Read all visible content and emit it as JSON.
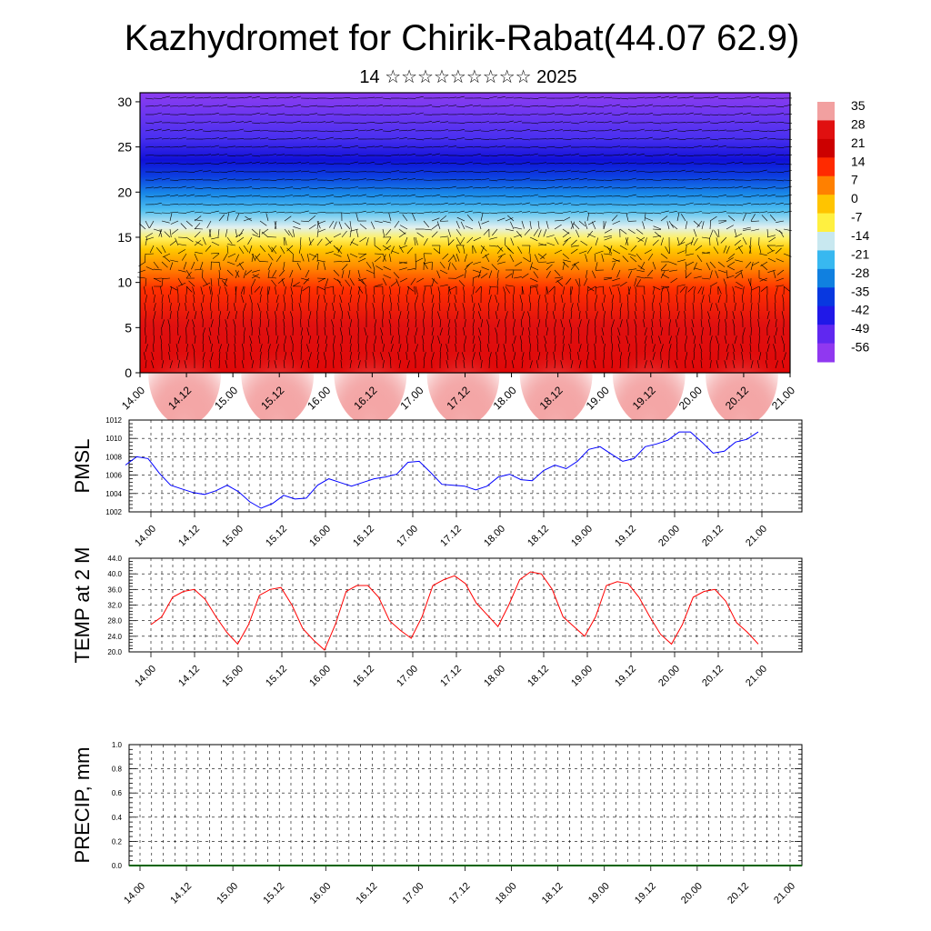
{
  "title": "Kazhydromet for Chirik-Rabat(44.07 62.9)",
  "subtitle": "14 ☆☆☆☆☆☆☆☆☆ 2025",
  "time_labels": [
    "14.00",
    "14.12",
    "15.00",
    "15.12",
    "16.00",
    "16.12",
    "17.00",
    "17.12",
    "18.00",
    "18.12",
    "19.00",
    "19.12",
    "20.00",
    "20.12",
    "21.00"
  ],
  "chart_data": [
    {
      "type": "heatmap",
      "title": "",
      "xlabel": "",
      "ylabel": "",
      "x": [
        "14.00",
        "14.12",
        "15.00",
        "15.12",
        "16.00",
        "16.12",
        "17.00",
        "17.12",
        "18.00",
        "18.12",
        "19.00",
        "19.12",
        "20.00",
        "20.12",
        "21.00"
      ],
      "yticks": [
        0,
        5,
        10,
        15,
        20,
        25,
        30
      ],
      "ylim": [
        0,
        31
      ],
      "colorbar": {
        "labels": [
          "35",
          "28",
          "21",
          "14",
          "7",
          "0",
          "-7",
          "-14",
          "-21",
          "-28",
          "-35",
          "-42",
          "-49",
          "-56"
        ],
        "values": [
          35,
          28,
          21,
          14,
          7,
          0,
          -7,
          -14,
          -21,
          -28,
          -35,
          -42,
          -49,
          -56
        ],
        "colors": [
          "#f2a0a0",
          "#e01010",
          "#cc0000",
          "#ff2a00",
          "#ff8000",
          "#ffc400",
          "#fff040",
          "#c8e8f0",
          "#38b8f0",
          "#1080e0",
          "#0838e0",
          "#2018e8",
          "#6028f0",
          "#9038f0"
        ]
      },
      "overlay": "wind barbs"
    },
    {
      "type": "line",
      "ylabel": "PMSL",
      "ylim": [
        1002,
        1012
      ],
      "yticks": [
        "1002",
        "1004",
        "1006",
        "1008",
        "1010",
        "1012"
      ],
      "color": "#0000ff",
      "series": [
        {
          "values": [
            1007.1,
            1008.0,
            1007.8,
            1006.2,
            1004.9,
            1004.5,
            1004.1,
            1003.9,
            1004.3,
            1004.9,
            1004.2,
            1003.1,
            1002.4,
            1002.9,
            1003.8,
            1003.4,
            1003.5,
            1004.9,
            1005.6,
            1005.2,
            1004.8,
            1005.2,
            1005.6,
            1005.8,
            1006.1,
            1007.4,
            1007.5,
            1006.3,
            1005.0,
            1004.9,
            1004.8,
            1004.4,
            1004.8,
            1005.8,
            1006.1,
            1005.5,
            1005.4,
            1006.5,
            1007.1,
            1006.7,
            1007.5,
            1008.8,
            1009.1,
            1008.3,
            1007.5,
            1007.8,
            1009.1,
            1009.4,
            1009.8,
            1010.7,
            1010.7,
            1009.6,
            1008.4,
            1008.6,
            1009.6,
            1009.9,
            1010.7
          ]
        }
      ]
    },
    {
      "type": "line",
      "ylabel": "TEMP at 2 M",
      "ylim": [
        20,
        44
      ],
      "yticks": [
        "20.0",
        "24.0",
        "28.0",
        "32.0",
        "36.0",
        "40.0",
        "44.0"
      ],
      "color": "#ff0000",
      "series": [
        {
          "values": [
            27,
            29,
            34,
            35.5,
            36,
            33.5,
            29,
            25,
            22,
            27,
            34.5,
            36,
            36.5,
            32,
            26,
            23,
            20.5,
            27,
            35.5,
            37,
            37,
            34,
            28,
            25.5,
            23.5,
            29,
            37,
            38.5,
            39.5,
            37.5,
            32.5,
            29.5,
            26.5,
            32,
            38.5,
            40.5,
            40,
            36,
            29,
            26.5,
            24,
            29,
            37,
            38,
            37.5,
            34,
            29,
            24.5,
            22,
            27,
            34,
            35.5,
            36,
            33,
            27.5,
            25,
            22
          ]
        }
      ]
    },
    {
      "type": "line",
      "ylabel": "PRECIP, mm",
      "ylim": [
        0,
        1
      ],
      "yticks": [
        "0.0",
        "0.2",
        "0.4",
        "0.6",
        "0.8",
        "1.0"
      ],
      "color": "#006400",
      "series": [
        {
          "values": [
            0,
            0,
            0,
            0,
            0,
            0,
            0,
            0,
            0,
            0,
            0,
            0,
            0,
            0,
            0,
            0,
            0,
            0,
            0,
            0,
            0,
            0,
            0,
            0,
            0,
            0,
            0,
            0,
            0,
            0,
            0,
            0,
            0,
            0,
            0,
            0,
            0,
            0,
            0,
            0,
            0,
            0,
            0,
            0,
            0,
            0,
            0,
            0,
            0,
            0,
            0,
            0,
            0,
            0,
            0,
            0,
            0
          ]
        }
      ]
    }
  ]
}
